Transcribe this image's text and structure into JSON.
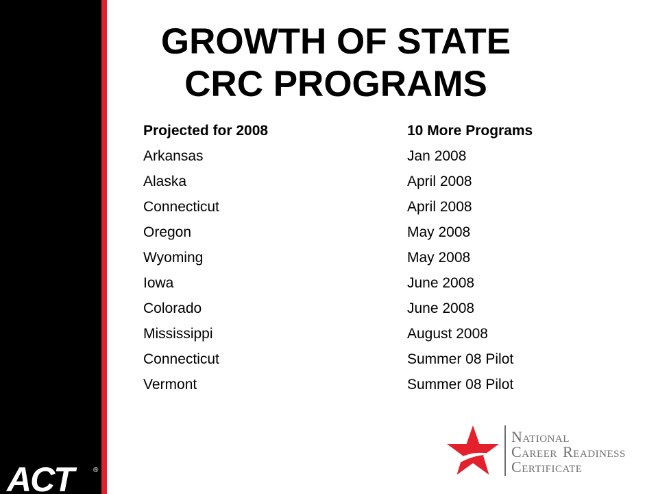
{
  "slide": {
    "title_line1": "GROWTH OF STATE",
    "title_line2": "CRC PROGRAMS",
    "colors": {
      "sidebar": "#000000",
      "stripe": "#e4202c",
      "text": "#000000",
      "logo_red": "#e4202c",
      "logo_gray": "#6f6f6f"
    }
  },
  "table": {
    "headers": [
      "Projected for 2008",
      "10 More Programs"
    ],
    "rows": [
      [
        "Arkansas",
        "Jan 2008"
      ],
      [
        "Alaska",
        "April 2008"
      ],
      [
        "Connecticut",
        "April 2008"
      ],
      [
        "Oregon",
        "May 2008"
      ],
      [
        "Wyoming",
        "May 2008"
      ],
      [
        "Iowa",
        "June 2008"
      ],
      [
        "Colorado",
        "June 2008"
      ],
      [
        "Mississippi",
        "August 2008"
      ],
      [
        "Connecticut",
        "Summer 08 Pilot"
      ],
      [
        "Vermont",
        "Summer 08 Pilot"
      ]
    ]
  },
  "logos": {
    "act": {
      "text": "ACT",
      "mark": "®"
    },
    "ncrc": {
      "icon": "star-swoosh-icon",
      "line1_big": "N",
      "line1_rest": "ATIONAL",
      "line2_big1": "C",
      "line2_rest1": "AREER ",
      "line2_big2": "R",
      "line2_rest2": "EADINESS",
      "line3_big": "C",
      "line3_rest": "ERTIFICATE"
    }
  }
}
